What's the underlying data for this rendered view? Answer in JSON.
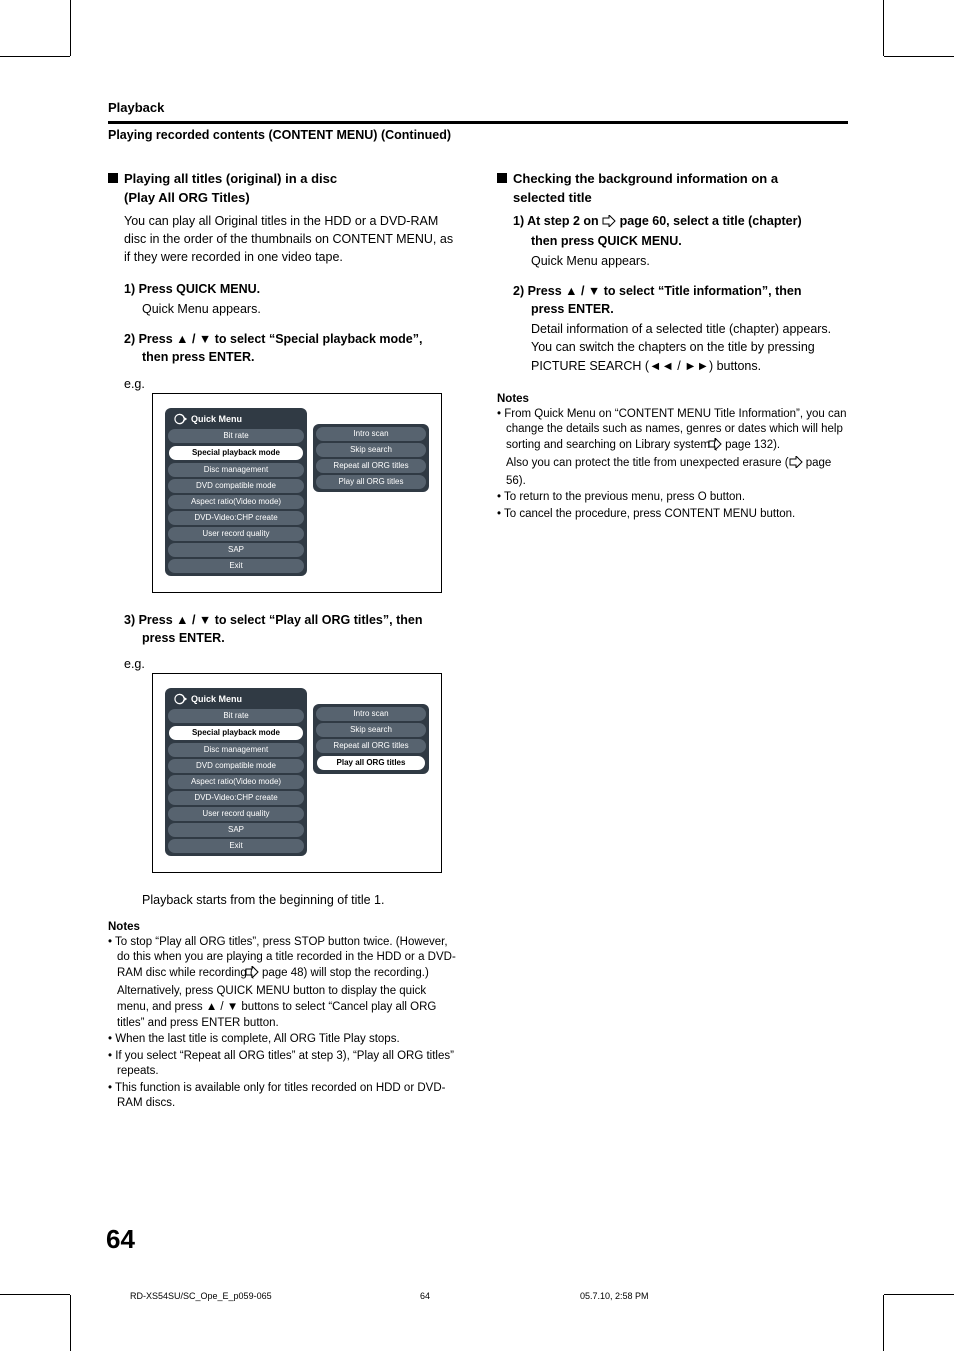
{
  "section_label": "Playback",
  "subtitle": "Playing recorded contents (CONTENT MENU) (Continued)",
  "left": {
    "heading_l1": "Playing all titles (original) in a disc",
    "heading_l2": "(Play All ORG Titles)",
    "intro": "You can play all Original titles in the HDD or a DVD-RAM disc in the order of the thumbnails on CONTENT MENU, as if they were recorded in one video tape.",
    "step1": "1) Press QUICK MENU.",
    "step1_body": "Quick Menu appears.",
    "step2_l1": "2) Press ▲ / ▼ to select “Special playback mode”,",
    "step2_l2": "then press ENTER.",
    "eg": "e.g.",
    "step3_l1": "3) Press ▲ / ▼ to select “Play all ORG titles”, then",
    "step3_l2": "press ENTER.",
    "afterplay": "Playback starts from the beginning of title 1.",
    "notes_head": "Notes",
    "note1": "• To stop “Play all ORG titles”, press STOP button twice. (However, do this when you are playing a title recorded in the HDD or a DVD-RAM disc while recording (",
    "note1_tail": " page 48) will stop the recording.)",
    "note1_sub": "Alternatively, press QUICK MENU button to display the quick menu, and press ▲ / ▼ buttons to select “Cancel play all ORG titles” and press ENTER button.",
    "note2": "• When the last title is complete, All ORG Title Play stops.",
    "note3": "• If you select “Repeat all ORG titles” at step 3), “Play all ORG titles” repeats.",
    "note4": "• This function is available only for titles recorded on HDD or DVD-RAM discs."
  },
  "right": {
    "heading_l1": "Checking the background information on a",
    "heading_l2": "selected title",
    "step1_l1": "1) At step 2 on ",
    "step1_l2": " page 60, select a title (chapter)",
    "step1_l3": "then press QUICK MENU.",
    "step1_body": "Quick Menu appears.",
    "step2_l1": "2) Press ▲ / ▼ to select “Title information”, then",
    "step2_l2": "press ENTER.",
    "step2_body": "Detail information of a selected title (chapter) appears. You can switch the chapters on the title by pressing PICTURE SEARCH (◄◄ / ►►) buttons.",
    "notes_head": "Notes",
    "note1a": "• From Quick Menu on “CONTENT MENU Title Information”, you can change the details such as names, genres or dates which will help sorting and searching on Library system (",
    "note1b": " page 132).",
    "note1_sub_a": "Also you can protect the title from unexpected erasure (",
    "note1_sub_b": " page 56).",
    "note2": "• To return to the previous menu, press O button.",
    "note3": "• To cancel the procedure, press CONTENT MENU button."
  },
  "menu1": {
    "title": "Quick Menu",
    "left": [
      "Bit rate",
      "Special playback mode",
      "Disc management",
      "DVD compatible mode",
      "Aspect ratio(Video mode)",
      "DVD-Video:CHP create",
      "User record quality",
      "SAP",
      "Exit"
    ],
    "left_highlight_index": 1,
    "right": [
      "Intro scan",
      "Skip search",
      "Repeat all ORG titles",
      "Play all ORG titles"
    ],
    "right_highlight_index": -1
  },
  "menu2": {
    "title": "Quick Menu",
    "left": [
      "Bit rate",
      "Special playback mode",
      "Disc management",
      "DVD compatible mode",
      "Aspect ratio(Video mode)",
      "DVD-Video:CHP create",
      "User record quality",
      "SAP",
      "Exit"
    ],
    "left_highlight_index": 1,
    "right": [
      "Intro scan",
      "Skip search",
      "Repeat all ORG titles",
      "Play all ORG titles"
    ],
    "right_highlight_index": 3
  },
  "page_number": "64",
  "footer": {
    "f1": "RD-XS54SU/SC_Ope_E_p059-065",
    "f2": "64",
    "f3": "05.7.10, 2:58 PM"
  },
  "colors": {
    "pill_dark_bg": "#57636f",
    "pill_wrap_bg": "#303a44"
  }
}
